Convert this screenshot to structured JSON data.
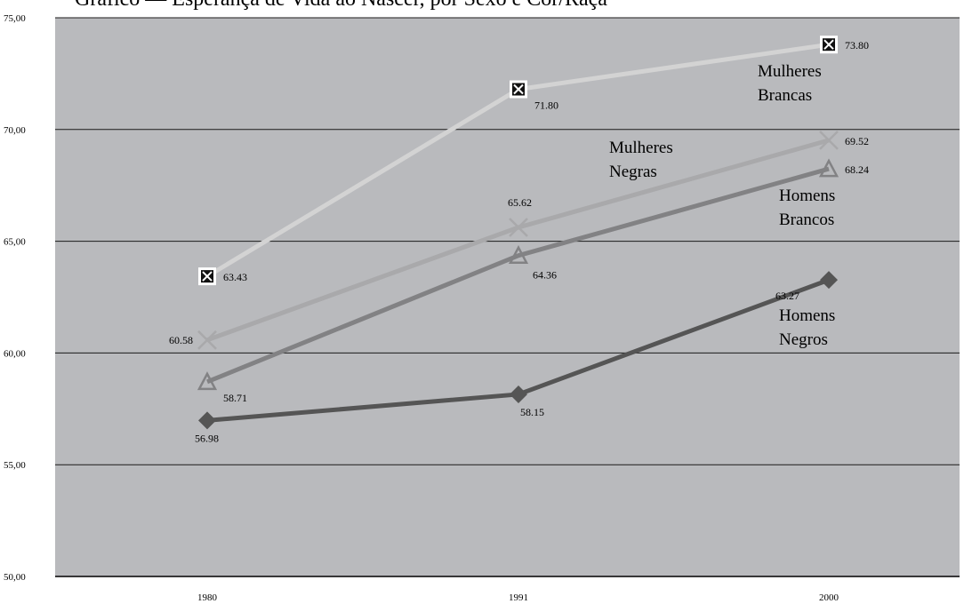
{
  "chart_data": {
    "type": "line",
    "title": "Gráfico — Esperança de Vida ao Nascer, por Sexo e Cor/Raça",
    "categories": [
      "1980",
      "1991",
      "2000"
    ],
    "ylim": [
      50,
      75
    ],
    "yticks": [
      "50,00",
      "55,00",
      "60,00",
      "65,00",
      "70,00",
      "75,00"
    ],
    "grid": true,
    "plot_bg": "#b9babd",
    "series": [
      {
        "name": "Mulheres Brancas",
        "name_lines": [
          "Mulheres",
          "Brancas"
        ],
        "values": [
          63.43,
          71.8,
          73.8
        ],
        "labels": [
          "63.43",
          "71.80",
          "73.80"
        ],
        "color": "#d3d3d3",
        "marker": "boxed-x"
      },
      {
        "name": "Mulheres Negras",
        "name_lines": [
          "Mulheres",
          "Negras"
        ],
        "values": [
          60.58,
          65.62,
          69.52
        ],
        "labels": [
          "60.58",
          "65.62",
          "69.52"
        ],
        "color": "#a9a9ab",
        "marker": "x"
      },
      {
        "name": "Homens Brancos",
        "name_lines": [
          "Homens",
          "Brancos"
        ],
        "values": [
          58.71,
          64.36,
          68.24
        ],
        "labels": [
          "58.71",
          "64.36",
          "68.24"
        ],
        "color": "#828284",
        "marker": "triangle"
      },
      {
        "name": "Homens Negros",
        "name_lines": [
          "Homens",
          "Negros"
        ],
        "values": [
          56.98,
          58.15,
          63.27
        ],
        "labels": [
          "56.98",
          "58.15",
          "63.27"
        ],
        "color": "#555555",
        "marker": "diamond"
      }
    ]
  }
}
